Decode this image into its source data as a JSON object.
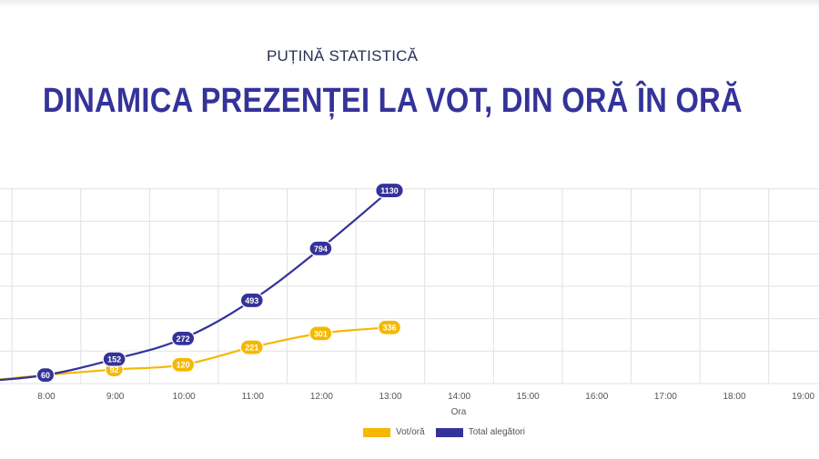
{
  "header": {
    "kicker": "PUȚINĂ STATISTICĂ",
    "title": "DINAMICA PREZENȚEI LA VOT, DIN ORĂ ÎN ORĂ"
  },
  "colors": {
    "vot_ora": "#F5B800",
    "total": "#343399",
    "grid": "#e2e2e2"
  },
  "chart_data": {
    "type": "line",
    "xlabel": "Ora",
    "ylabel": "",
    "categories": [
      "8:00",
      "9:00",
      "10:00",
      "11:00",
      "12:00",
      "13:00",
      "14:00",
      "15:00",
      "16:00",
      "17:00",
      "18:00",
      "19:00"
    ],
    "series": [
      {
        "name": "Vot/oră",
        "values": [
          60,
          92,
          120,
          221,
          301,
          336,
          null,
          null,
          null,
          null,
          null,
          null
        ]
      },
      {
        "name": "Total alegători",
        "values": [
          60,
          152,
          272,
          493,
          794,
          1130,
          null,
          null,
          null,
          null,
          null,
          null
        ]
      }
    ],
    "grid": true,
    "legend": "bottom"
  }
}
